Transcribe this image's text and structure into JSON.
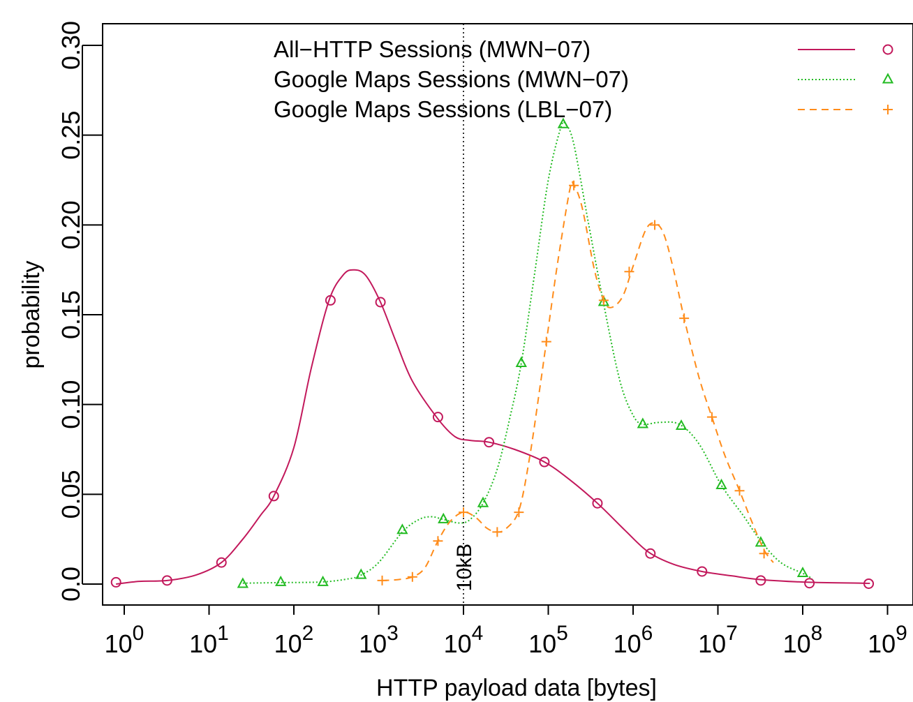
{
  "chart_data": {
    "type": "line",
    "x_scale": "log10",
    "xlabel": "HTTP payload data [bytes]",
    "ylabel": "probability",
    "xlim": [
      1,
      1000000000
    ],
    "ylim": [
      0.0,
      0.3
    ],
    "x_ticks": [
      {
        "value": 1,
        "base": "10",
        "exp": "0"
      },
      {
        "value": 10,
        "base": "10",
        "exp": "1"
      },
      {
        "value": 100,
        "base": "10",
        "exp": "2"
      },
      {
        "value": 1000,
        "base": "10",
        "exp": "3"
      },
      {
        "value": 10000,
        "base": "10",
        "exp": "4"
      },
      {
        "value": 100000,
        "base": "10",
        "exp": "5"
      },
      {
        "value": 1000000,
        "base": "10",
        "exp": "6"
      },
      {
        "value": 10000000,
        "base": "10",
        "exp": "7"
      },
      {
        "value": 100000000,
        "base": "10",
        "exp": "8"
      },
      {
        "value": 1000000000,
        "base": "10",
        "exp": "9"
      }
    ],
    "y_ticks": [
      "0.0",
      "0.05",
      "0.10",
      "0.15",
      "0.20",
      "0.25",
      "0.30"
    ],
    "annotation": {
      "label": "10kB",
      "x": 10000
    },
    "legend_position": "top",
    "series": [
      {
        "name": "All−HTTP Sessions (MWN−07)",
        "color": "#c2185b",
        "line_style": "solid",
        "marker": "circle",
        "curve": [
          [
            0.8,
            0.0
          ],
          [
            1.5,
            0.0015
          ],
          [
            3.2,
            0.002
          ],
          [
            7,
            0.005
          ],
          [
            14,
            0.012
          ],
          [
            25,
            0.025
          ],
          [
            40,
            0.038
          ],
          [
            58,
            0.049
          ],
          [
            100,
            0.076
          ],
          [
            160,
            0.12
          ],
          [
            260,
            0.158
          ],
          [
            380,
            0.172
          ],
          [
            500,
            0.175
          ],
          [
            700,
            0.172
          ],
          [
            1050,
            0.157
          ],
          [
            1600,
            0.135
          ],
          [
            2500,
            0.113
          ],
          [
            5000,
            0.092
          ],
          [
            8000,
            0.082
          ],
          [
            12000,
            0.08
          ],
          [
            20000,
            0.079
          ],
          [
            40000,
            0.075
          ],
          [
            90000,
            0.068
          ],
          [
            180000,
            0.058
          ],
          [
            380000,
            0.045
          ],
          [
            800000,
            0.03
          ],
          [
            1500000,
            0.018
          ],
          [
            3000000,
            0.011
          ],
          [
            6500000,
            0.007
          ],
          [
            15000000,
            0.0045
          ],
          [
            32000000,
            0.0025
          ],
          [
            120000000,
            0.001
          ],
          [
            500000000,
            0.0005
          ],
          [
            620000000,
            0.0004
          ]
        ],
        "markers": [
          [
            0.8,
            0.001
          ],
          [
            3.2,
            0.002
          ],
          [
            14,
            0.012
          ],
          [
            58,
            0.049
          ],
          [
            270,
            0.158
          ],
          [
            1050,
            0.157
          ],
          [
            5000,
            0.093
          ],
          [
            20000,
            0.079
          ],
          [
            90000,
            0.068
          ],
          [
            380000,
            0.045
          ],
          [
            1600000,
            0.017
          ],
          [
            6500000,
            0.007
          ],
          [
            32000000,
            0.002
          ],
          [
            120000000,
            0.0005
          ],
          [
            600000000,
            0.0002
          ]
        ]
      },
      {
        "name": "Google Maps Sessions (MWN−07)",
        "color": "#22bb22",
        "line_style": "dotted",
        "marker": "triangle",
        "curve": [
          [
            25,
            0.0005
          ],
          [
            70,
            0.0008
          ],
          [
            220,
            0.0012
          ],
          [
            450,
            0.003
          ],
          [
            620,
            0.005
          ],
          [
            1000,
            0.012
          ],
          [
            1900,
            0.029
          ],
          [
            3000,
            0.036
          ],
          [
            4200,
            0.0375
          ],
          [
            5800,
            0.036
          ],
          [
            9000,
            0.034
          ],
          [
            12000,
            0.036
          ],
          [
            17000,
            0.045
          ],
          [
            25000,
            0.064
          ],
          [
            35000,
            0.092
          ],
          [
            48000,
            0.123
          ],
          [
            70000,
            0.175
          ],
          [
            100000,
            0.225
          ],
          [
            140000,
            0.254
          ],
          [
            160000,
            0.256
          ],
          [
            200000,
            0.245
          ],
          [
            300000,
            0.2
          ],
          [
            450000,
            0.156
          ],
          [
            700000,
            0.113
          ],
          [
            1000000,
            0.094
          ],
          [
            1300000,
            0.089
          ],
          [
            2000000,
            0.09
          ],
          [
            3500000,
            0.089
          ],
          [
            6000000,
            0.078
          ],
          [
            11000000,
            0.055
          ],
          [
            20000000,
            0.038
          ],
          [
            32000000,
            0.024
          ],
          [
            55000000,
            0.012
          ],
          [
            100000000,
            0.006
          ],
          [
            130000000,
            0.003
          ]
        ],
        "markers": [
          [
            25,
            0.0
          ],
          [
            70,
            0.001
          ],
          [
            220,
            0.001
          ],
          [
            620,
            0.005
          ],
          [
            1900,
            0.03
          ],
          [
            5800,
            0.036
          ],
          [
            17000,
            0.045
          ],
          [
            48000,
            0.123
          ],
          [
            150000,
            0.256
          ],
          [
            450000,
            0.157
          ],
          [
            1300000,
            0.089
          ],
          [
            3700000,
            0.088
          ],
          [
            11000000,
            0.055
          ],
          [
            32000000,
            0.023
          ],
          [
            100000000,
            0.006
          ]
        ]
      },
      {
        "name": "Google Maps Sessions (LBL−07)",
        "color": "#ff8c1a",
        "line_style": "dashed",
        "marker": "plus",
        "curve": [
          [
            1100,
            0.002
          ],
          [
            1700,
            0.0025
          ],
          [
            2500,
            0.004
          ],
          [
            3500,
            0.009
          ],
          [
            5000,
            0.024
          ],
          [
            7000,
            0.035
          ],
          [
            10000,
            0.04
          ],
          [
            14000,
            0.037
          ],
          [
            19000,
            0.031
          ],
          [
            25000,
            0.029
          ],
          [
            32000,
            0.031
          ],
          [
            45000,
            0.041
          ],
          [
            60000,
            0.07
          ],
          [
            80000,
            0.11
          ],
          [
            95000,
            0.135
          ],
          [
            130000,
            0.18
          ],
          [
            180000,
            0.22
          ],
          [
            200000,
            0.222
          ],
          [
            250000,
            0.21
          ],
          [
            350000,
            0.175
          ],
          [
            450000,
            0.158
          ],
          [
            550000,
            0.154
          ],
          [
            750000,
            0.16
          ],
          [
            1000000,
            0.177
          ],
          [
            1400000,
            0.197
          ],
          [
            1800000,
            0.201
          ],
          [
            2300000,
            0.195
          ],
          [
            3000000,
            0.175
          ],
          [
            4000000,
            0.148
          ],
          [
            6000000,
            0.115
          ],
          [
            8500000,
            0.093
          ],
          [
            12000000,
            0.072
          ],
          [
            18000000,
            0.052
          ],
          [
            25000000,
            0.035
          ],
          [
            35000000,
            0.019
          ],
          [
            45000000,
            0.012
          ]
        ],
        "markers": [
          [
            1100,
            0.002
          ],
          [
            2500,
            0.004
          ],
          [
            5000,
            0.024
          ],
          [
            10000,
            0.04
          ],
          [
            25000,
            0.029
          ],
          [
            45000,
            0.04
          ],
          [
            95000,
            0.135
          ],
          [
            200000,
            0.222
          ],
          [
            450000,
            0.158
          ],
          [
            900000,
            0.174
          ],
          [
            1800000,
            0.2
          ],
          [
            4000000,
            0.148
          ],
          [
            8500000,
            0.093
          ],
          [
            18000000,
            0.052
          ],
          [
            35000000,
            0.017
          ]
        ]
      }
    ]
  }
}
